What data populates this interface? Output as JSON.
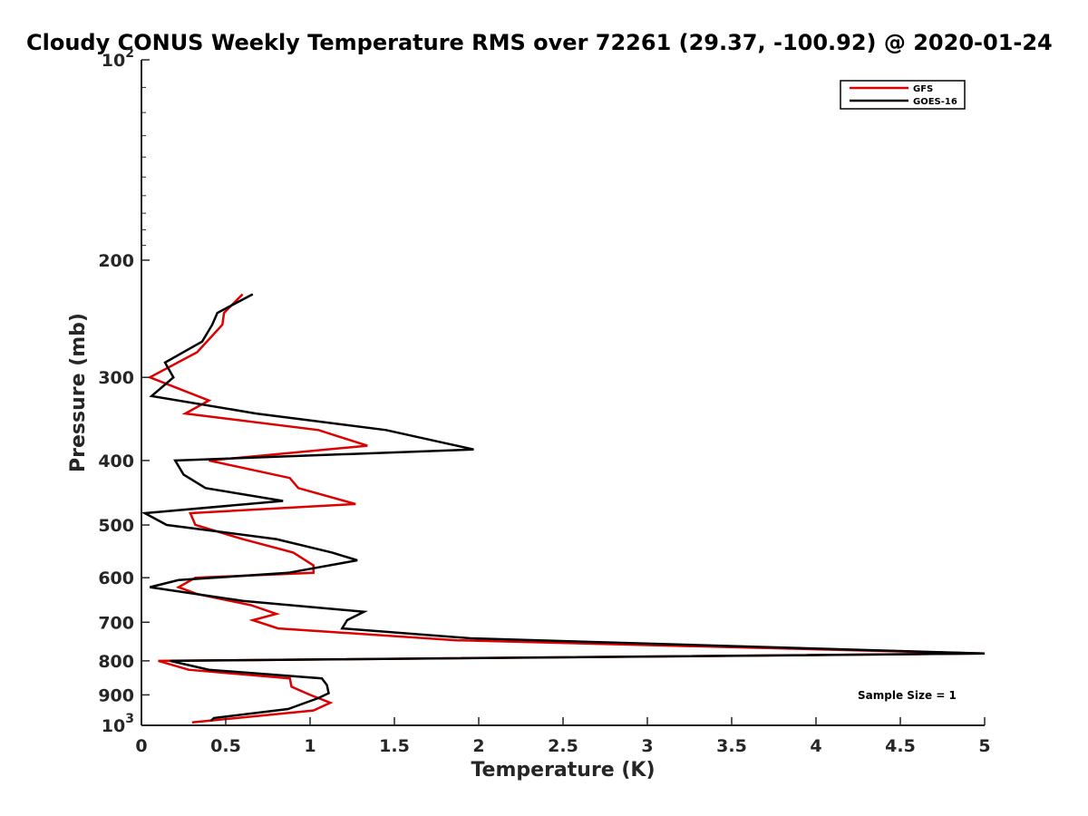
{
  "chart_data": {
    "type": "line",
    "title": "Cloudy CONUS Weekly Temperature RMS over 72261 (29.37, -100.92) @ 2020-01-24",
    "xlabel": "Temperature (K)",
    "ylabel": "Pressure (mb)",
    "xlim": [
      0,
      5
    ],
    "ylim": [
      100,
      1000
    ],
    "y_scale": "log",
    "y_reversed": true,
    "x_ticks": [
      "0",
      "0.5",
      "1",
      "1.5",
      "2",
      "2.5",
      "3",
      "3.5",
      "4",
      "4.5",
      "5"
    ],
    "y_ticks": [
      {
        "value": 100,
        "base": "10",
        "exp": "2"
      },
      {
        "value": 200,
        "label": "200"
      },
      {
        "value": 300,
        "label": "300"
      },
      {
        "value": 400,
        "label": "400"
      },
      {
        "value": 500,
        "label": "500"
      },
      {
        "value": 600,
        "label": "600"
      },
      {
        "value": 700,
        "label": "700"
      },
      {
        "value": 800,
        "label": "800"
      },
      {
        "value": 900,
        "label": "900"
      },
      {
        "value": 1000,
        "base": "10",
        "exp": "3"
      }
    ],
    "grid": false,
    "legend_position": "top-right",
    "annotation": "Sample Size = 1",
    "series": [
      {
        "name": "GFS",
        "color": "#dd0000",
        "points": [
          [
            0.6,
            225
          ],
          [
            0.49,
            240
          ],
          [
            0.48,
            250
          ],
          [
            0.33,
            275
          ],
          [
            0.05,
            300
          ],
          [
            0.4,
            325
          ],
          [
            0.26,
            340
          ],
          [
            1.05,
            360
          ],
          [
            1.34,
            380
          ],
          [
            0.4,
            400
          ],
          [
            0.88,
            425
          ],
          [
            0.93,
            440
          ],
          [
            1.27,
            465
          ],
          [
            0.29,
            480
          ],
          [
            0.32,
            500
          ],
          [
            0.6,
            525
          ],
          [
            0.9,
            550
          ],
          [
            1.02,
            575
          ],
          [
            1.02,
            590
          ],
          [
            0.32,
            600
          ],
          [
            0.22,
            620
          ],
          [
            0.33,
            635
          ],
          [
            0.65,
            660
          ],
          [
            0.8,
            680
          ],
          [
            0.66,
            695
          ],
          [
            0.81,
            715
          ],
          [
            1.87,
            745
          ],
          [
            5.0,
            780
          ],
          [
            0.1,
            800
          ],
          [
            0.28,
            825
          ],
          [
            0.88,
            850
          ],
          [
            0.89,
            875
          ],
          [
            1.0,
            900
          ],
          [
            1.12,
            925
          ],
          [
            1.02,
            950
          ],
          [
            0.3,
            990
          ]
        ]
      },
      {
        "name": "GOES-16",
        "color": "#000000",
        "points": [
          [
            0.66,
            225
          ],
          [
            0.45,
            240
          ],
          [
            0.42,
            250
          ],
          [
            0.36,
            265
          ],
          [
            0.14,
            285
          ],
          [
            0.19,
            300
          ],
          [
            0.06,
            320
          ],
          [
            0.68,
            340
          ],
          [
            1.45,
            360
          ],
          [
            1.97,
            385
          ],
          [
            0.2,
            400
          ],
          [
            0.25,
            420
          ],
          [
            0.38,
            440
          ],
          [
            0.84,
            460
          ],
          [
            0.02,
            480
          ],
          [
            0.15,
            500
          ],
          [
            0.8,
            525
          ],
          [
            1.13,
            550
          ],
          [
            1.28,
            565
          ],
          [
            0.87,
            590
          ],
          [
            0.22,
            605
          ],
          [
            0.05,
            620
          ],
          [
            0.6,
            650
          ],
          [
            1.32,
            675
          ],
          [
            1.22,
            695
          ],
          [
            1.19,
            715
          ],
          [
            1.95,
            740
          ],
          [
            5.0,
            780
          ],
          [
            0.17,
            800
          ],
          [
            0.4,
            825
          ],
          [
            1.07,
            850
          ],
          [
            1.1,
            870
          ],
          [
            1.11,
            895
          ],
          [
            1.05,
            910
          ],
          [
            0.87,
            945
          ],
          [
            0.43,
            975
          ],
          [
            0.41,
            985
          ]
        ]
      }
    ]
  }
}
